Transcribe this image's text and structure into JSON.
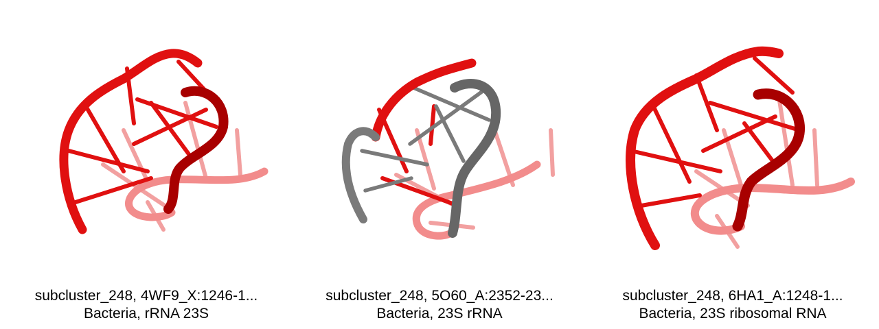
{
  "colors": {
    "red": "#e01010",
    "dark_red": "#a00000",
    "light_red": "#f08080",
    "grey": "#6e6e6e",
    "light_grey": "#aaaaaa"
  },
  "panels": [
    {
      "line1": "subcluster_248, 4WF9_X:1246-1...",
      "line2": "Bacteria, rRNA 23S"
    },
    {
      "line1": "subcluster_248, 5O60_A:2352-23...",
      "line2": "Bacteria, 23S rRNA"
    },
    {
      "line1": "subcluster_248, 6HA1_A:1248-1...",
      "line2": "Bacteria, 23S ribosomal RNA"
    }
  ]
}
